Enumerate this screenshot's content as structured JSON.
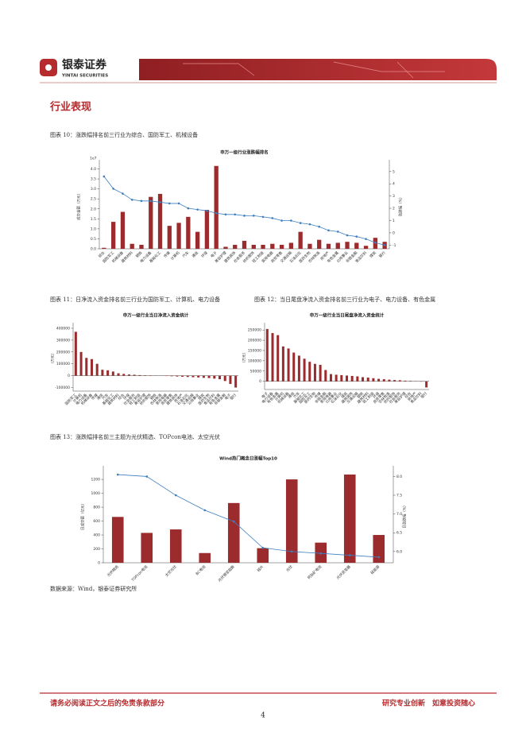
{
  "header": {
    "logo_cn": "银泰证券",
    "logo_en": "YINTAI SECURITIES"
  },
  "section_title": "行业表现",
  "source": "数据来源：Wind，银泰证券研究所",
  "footer": {
    "left": "请务必阅读正文之后的免责条款部分",
    "right": "研究专业创新　如意投资随心",
    "page": "4"
  },
  "chart_data": [
    {
      "type": "combo",
      "caption": "图表 10：涨跌幅排名前三行业为综合、国防军工、机械设备",
      "title": "申万一级行业涨跌幅排名",
      "y_label": "成交金额（万元）",
      "y_offset_label": "1e7",
      "y2_label": "涨跌幅（%）",
      "categories": [
        "综合",
        "国防军工",
        "机械设备",
        "建筑材料",
        "钢铁",
        "电力设备",
        "基础化工",
        "传媒",
        "计算机",
        "汽车",
        "通信",
        "环保",
        "电子",
        "美容护理",
        "建筑装饰",
        "社会服务",
        "纺织服饰",
        "轻工制造",
        "家用电器",
        "商贸零售",
        "交通运输",
        "石油石化",
        "医药生物",
        "农林牧渔",
        "房地产",
        "有色金属",
        "公用事业",
        "非银金融",
        "食品饮料",
        "煤炭",
        "银行"
      ],
      "series": [
        {
          "type": "bar",
          "color": "#9b2b2c",
          "values": [
            0.05,
            1.35,
            1.85,
            0.25,
            0.2,
            2.6,
            2.75,
            1.15,
            1.3,
            1.6,
            0.85,
            1.95,
            4.15,
            0.1,
            0.2,
            0.4,
            0.2,
            0.2,
            0.25,
            0.2,
            0.3,
            0.85,
            0.25,
            0.45,
            0.25,
            0.3,
            0.35,
            0.3,
            0.15,
            0.55,
            0.35
          ]
        },
        {
          "type": "line",
          "axis": "y2",
          "color": "#3d7fc1",
          "values": [
            4.6,
            3.6,
            3.2,
            2.7,
            2.6,
            2.6,
            2.5,
            2.4,
            2.4,
            2.0,
            1.9,
            1.8,
            1.6,
            1.5,
            1.5,
            1.4,
            1.4,
            1.3,
            1.2,
            1.0,
            1.0,
            0.8,
            0.7,
            0.5,
            0.2,
            0.1,
            -0.2,
            -0.3,
            -0.5,
            -0.8,
            -1.0
          ]
        }
      ],
      "ylim": [
        0,
        4.3
      ],
      "yticks": [
        {
          "value": 0,
          "label": "0.0"
        },
        0.5,
        {
          "value": 1,
          "label": "1.0"
        },
        1.5,
        {
          "value": 2,
          "label": "2.0"
        },
        2.5,
        {
          "value": 3,
          "label": "3.0"
        },
        3.5,
        {
          "value": 4,
          "label": "4.0"
        }
      ],
      "y2lim": [
        -1.3,
        5.7
      ],
      "y2ticks": [
        -1,
        0,
        1,
        2,
        3,
        4,
        5
      ]
    },
    {
      "type": "bar",
      "caption": "图表 11：日净流入资金排名前三行业为国防军工、计算机、电力设备",
      "title": "申万一级行业当日净流入资金统计",
      "y_label": "（万元）",
      "categories": [
        "国防军工",
        "计算机",
        "电力设备",
        "机械设备",
        "传媒",
        "通信",
        "汽车",
        "基础化工",
        "建筑材料",
        "综合",
        "环保",
        "社会服务",
        "轻工制造",
        "美容护理",
        "纺织服饰",
        "钢铁",
        "农林牧渔",
        "家用电器",
        "商贸零售",
        "建筑装饰",
        "房地产",
        "石油石化",
        "交通运输",
        "公用事业",
        "煤炭",
        "医药生物",
        "食品饮料",
        "有色金属",
        "非银金融",
        "电子",
        "银行"
      ],
      "series": [
        {
          "type": "bar",
          "color": "#9b2b2c",
          "values": [
            370000,
            200000,
            150000,
            140000,
            100000,
            50000,
            45000,
            35000,
            20000,
            15000,
            10000,
            8000,
            5000,
            3000,
            2000,
            1000,
            -1000,
            -3000,
            -5000,
            -7000,
            -9000,
            -11000,
            -13000,
            -15000,
            -18000,
            -20000,
            -25000,
            -30000,
            -45000,
            -70000,
            -100000
          ]
        }
      ],
      "ylim": [
        -130000,
        420000
      ],
      "yticks": [
        -100000,
        0,
        100000,
        200000,
        300000,
        400000
      ]
    },
    {
      "type": "bar",
      "caption": "图表 12：当日尾盘净流入资金排名前三行业为电子、电力设备、有色金属",
      "title": "申万一级行业当日尾盘净流入资金统计",
      "y_label": "（万元）",
      "categories": [
        "电子",
        "电力设备",
        "有色金属",
        "计算机",
        "机械设备",
        "通信",
        "汽车",
        "基础化工",
        "国防军工",
        "医药生物",
        "传媒",
        "非银金融",
        "家用电器",
        "公用事业",
        "石油石化",
        "煤炭",
        "建筑装饰",
        "交通运输",
        "钢铁",
        "建筑材料",
        "轻工制造",
        "环保",
        "商贸零售",
        "农林牧渔",
        "纺织服饰",
        "社会服务",
        "美容护理",
        "综合",
        "房地产",
        "食品饮料",
        "银行"
      ],
      "series": [
        {
          "type": "bar",
          "color": "#9b2b2c",
          "values": [
            255000,
            235000,
            225000,
            170000,
            160000,
            140000,
            125000,
            110000,
            95000,
            85000,
            80000,
            55000,
            35000,
            32000,
            30000,
            28000,
            26000,
            24000,
            20000,
            18000,
            15000,
            12000,
            10000,
            8000,
            6000,
            5000,
            3000,
            2000,
            1000,
            -2000,
            -30000
          ]
        }
      ],
      "ylim": [
        -40000,
        270000
      ],
      "yticks": [
        0,
        50000,
        100000,
        150000,
        200000,
        250000
      ]
    },
    {
      "type": "combo",
      "caption": "图表 13：涨跌幅排名前三主题为光伏精选、TOPcon电池、太空光伏",
      "title": "Wind热门概念日涨幅Top10",
      "y_label": "日成交额（亿元）",
      "y2_label": "日涨跌幅（%）",
      "categories": [
        "光伏精选",
        "TOPcon电池",
        "太空光伏",
        "BC电池",
        "光伏银浆指数",
        "硅片",
        "光伏",
        "钙钛矿电池",
        "光伏逆变器",
        "硅能源"
      ],
      "series": [
        {
          "type": "bar",
          "color": "#9b2b2c",
          "values": [
            660,
            430,
            480,
            140,
            860,
            210,
            1200,
            290,
            1270,
            400
          ]
        },
        {
          "type": "line",
          "axis": "y2",
          "color": "#3d7fc1",
          "values": [
            8.05,
            8.0,
            7.5,
            7.1,
            6.8,
            6.1,
            6.0,
            5.95,
            5.9,
            5.85
          ]
        }
      ],
      "ylim": [
        0,
        1350
      ],
      "yticks": [
        0,
        200,
        400,
        600,
        800,
        1000,
        1200
      ],
      "y2lim": [
        5.7,
        8.2
      ],
      "y2ticks": [
        {
          "value": 6,
          "label": "6.0"
        },
        6.5,
        {
          "value": 7,
          "label": "7.0"
        },
        7.5,
        {
          "value": 8,
          "label": "8.0"
        }
      ]
    }
  ]
}
